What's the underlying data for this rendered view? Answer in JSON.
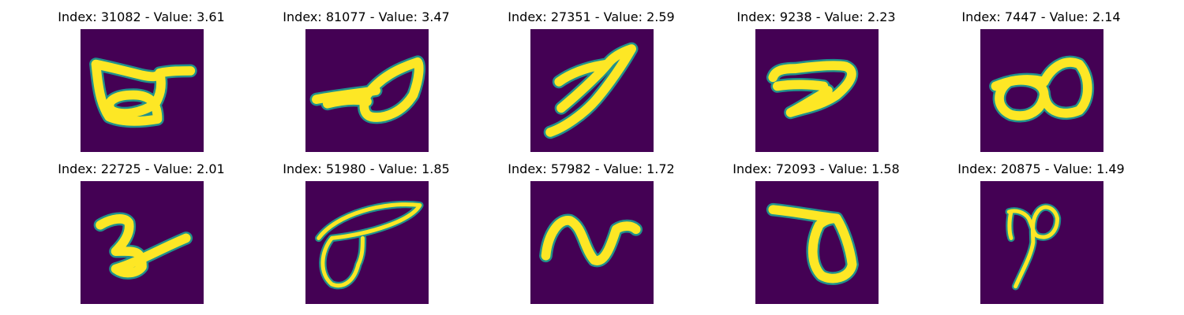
{
  "figure": {
    "panels": [
      {
        "title": "Index: 31082 - Value: 3.61",
        "index": 31082,
        "value": 3.61,
        "image_name": "digit-glyph-image"
      },
      {
        "title": "Index: 81077 - Value: 3.47",
        "index": 81077,
        "value": 3.47,
        "image_name": "digit-glyph-image"
      },
      {
        "title": "Index: 27351 - Value: 2.59",
        "index": 27351,
        "value": 2.59,
        "image_name": "digit-glyph-image"
      },
      {
        "title": "Index: 9238 - Value: 2.23",
        "index": 9238,
        "value": 2.23,
        "image_name": "digit-glyph-image"
      },
      {
        "title": "Index: 7447 - Value: 2.14",
        "index": 7447,
        "value": 2.14,
        "image_name": "digit-glyph-image"
      },
      {
        "title": "Index: 22725 - Value: 2.01",
        "index": 22725,
        "value": 2.01,
        "image_name": "digit-glyph-image"
      },
      {
        "title": "Index: 51980 - Value: 1.85",
        "index": 51980,
        "value": 1.85,
        "image_name": "digit-glyph-image"
      },
      {
        "title": "Index: 57982 - Value: 1.72",
        "index": 57982,
        "value": 1.72,
        "image_name": "digit-glyph-image"
      },
      {
        "title": "Index: 72093 - Value: 1.58",
        "index": 72093,
        "value": 1.58,
        "image_name": "digit-glyph-image"
      },
      {
        "title": "Index: 20875 - Value: 1.49",
        "index": 20875,
        "value": 1.49,
        "image_name": "digit-glyph-image"
      }
    ],
    "colors": {
      "background": "#440154",
      "stroke_outer": "#21918c",
      "stroke_inner": "#fde725"
    }
  }
}
